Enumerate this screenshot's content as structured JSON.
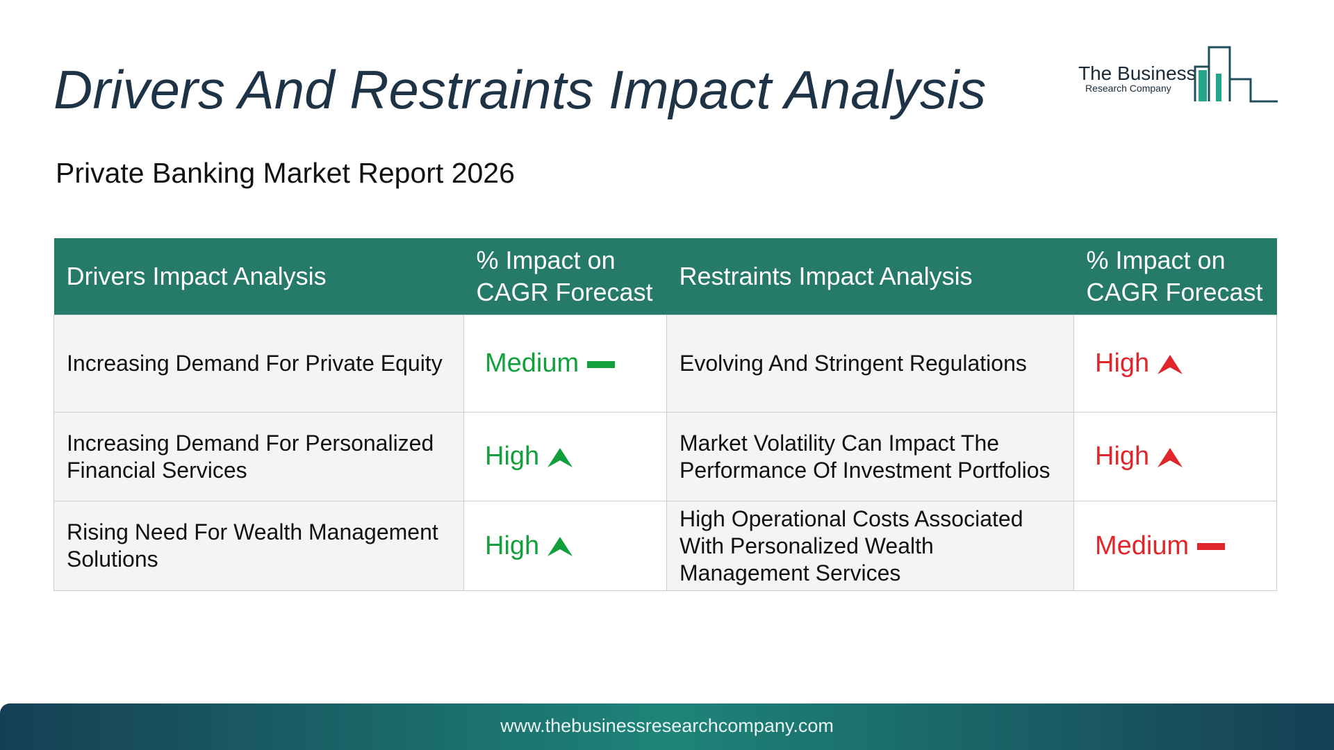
{
  "header": {
    "title": "Drivers And Restraints Impact Analysis",
    "subtitle": "Private Banking Market Report 2026",
    "logo": {
      "line1": "The Business",
      "line2": "Research Company"
    }
  },
  "table": {
    "headers": [
      "Drivers Impact Analysis",
      "% Impact on CAGR Forecast",
      "Restraints Impact Analysis",
      "% Impact on CAGR Forecast"
    ],
    "rows": [
      [
        "Increasing Demand For Private Equity",
        "Medium",
        "Evolving And Stringent Regulations",
        "High"
      ],
      [
        "Increasing Demand For Personalized Financial Services",
        "High",
        "Market Volatility Can Impact The Performance Of Investment Portfolios",
        "High"
      ],
      [
        "Rising Need For Wealth Management Solutions",
        "High",
        "High Operational Costs Associated With Personalized Wealth Management Services",
        "Medium"
      ]
    ]
  },
  "footer": {
    "url": "www.thebusinessresearchcompany.com"
  }
}
